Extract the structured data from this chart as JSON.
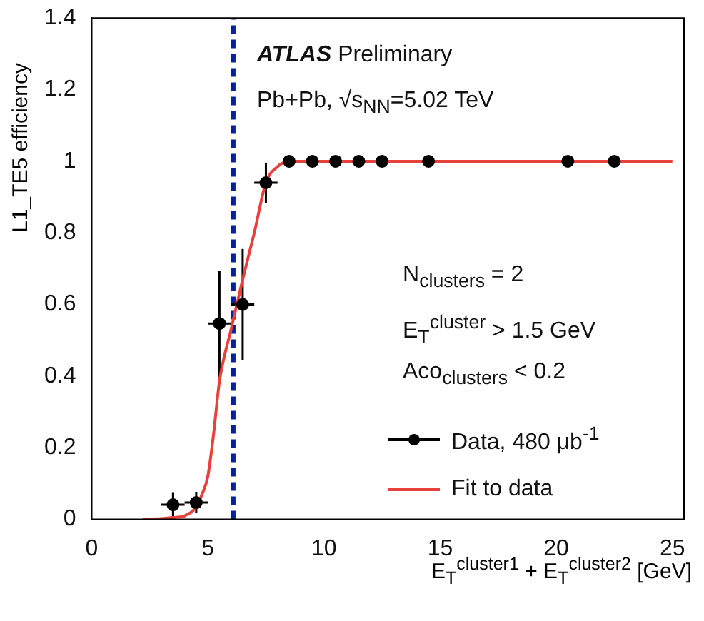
{
  "chart_data": {
    "type": "scatter",
    "xlabel": "E$_{T}$$^{cluster1}$ + E$_{T}$$^{cluster2}$ [GeV]",
    "ylabel": "L1_TE5 efficiency",
    "xlim": [
      0,
      25.5
    ],
    "xticks": [
      0,
      5,
      10,
      15,
      20,
      25
    ],
    "ylim": [
      0,
      1.4
    ],
    "yticks": [
      0,
      0.2,
      0.4,
      0.6,
      0.8,
      1,
      1.2,
      1.4
    ],
    "grid": false,
    "legend": "right",
    "annotations": [
      "ATLAS Preliminary",
      "Pb+Pb, √s$_{NN}$=5.02 TeV",
      "N$_{clusters}$ = 2",
      "E$_{T}$$^{cluster}$ > 1.5 GeV",
      "Aco$_{clusters}$ < 0.2"
    ],
    "ref_lines": [
      {
        "axis": "x",
        "value": 6.1,
        "color": "#0a1f9c",
        "line_style": "dashed"
      }
    ],
    "series": [
      {
        "name": "Data, 480 μb$^{-1}$",
        "color": "#000000",
        "marker": "circle",
        "x": [
          3.5,
          4.5,
          5.5,
          6.5,
          7.5,
          8.5,
          9.5,
          10.5,
          11.5,
          12.5,
          14.5,
          20.5,
          22.5
        ],
        "values": [
          0.041,
          0.047,
          0.547,
          0.6,
          0.94,
          1,
          1,
          1,
          1,
          1,
          1,
          1,
          1
        ],
        "errors": [
          0.035,
          0.03,
          [
            0.397,
            0.693
          ],
          [
            0.444,
            0.755
          ],
          [
            0.884,
            0.996
          ],
          null,
          null,
          null,
          null,
          null,
          null,
          null,
          null
        ],
        "xerrors": [
          0.5,
          0.5,
          0.5,
          0.5,
          0.5,
          null,
          null,
          null,
          null,
          null,
          null,
          null,
          null
        ]
      },
      {
        "name": "Fit to data",
        "type": "line",
        "color": "#e8413c",
        "marker": "none",
        "line_style": "solid",
        "x": [
          2.2,
          3,
          3.5,
          4,
          4.5,
          4.75,
          5,
          5.25,
          5.5,
          6,
          6.5,
          7,
          7.5,
          8,
          8.5,
          10,
          25
        ],
        "values": [
          0,
          0.002,
          0.005,
          0.01,
          0.035,
          0.07,
          0.12,
          0.24,
          0.385,
          0.53,
          0.67,
          0.8,
          0.94,
          0.985,
          1,
          1,
          1
        ]
      }
    ]
  }
}
